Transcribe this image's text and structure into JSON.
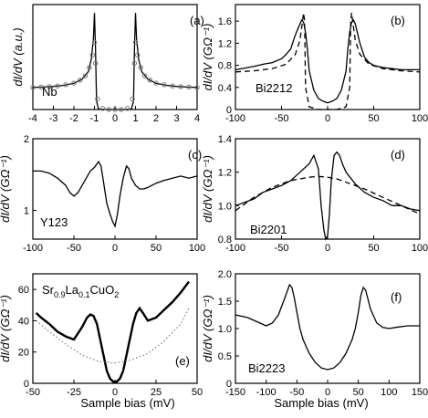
{
  "figure": {
    "xlabel": "Sample bias  (mV)"
  },
  "chart_data": [
    {
      "type": "line",
      "panel_label": "(a)",
      "sample": "Nb",
      "ylabel": "dI/dV  (a.u.)",
      "xlim": [
        -4,
        4
      ],
      "xticks": [
        "-4",
        "-3",
        "-2",
        "-1",
        "0",
        "1",
        "2",
        "3",
        "4"
      ],
      "yticks": [],
      "series": [
        {
          "style": "solid",
          "x": [
            -4,
            -3.5,
            -3,
            -2.5,
            -2,
            -1.6,
            -1.3,
            -1.15,
            -1.05,
            -1.0,
            -0.95,
            -0.9,
            -0.8,
            -0.5,
            0,
            0.5,
            0.8,
            0.9,
            0.95,
            1.0,
            1.05,
            1.15,
            1.3,
            1.6,
            2,
            2.5,
            3,
            3.5,
            4
          ],
          "y": [
            1.05,
            1.07,
            1.1,
            1.15,
            1.25,
            1.45,
            1.8,
            2.4,
            3.4,
            4.6,
            3.0,
            0.4,
            0.02,
            0.0,
            0.0,
            0.0,
            0.02,
            0.4,
            3.0,
            4.6,
            3.4,
            2.4,
            1.8,
            1.45,
            1.25,
            1.15,
            1.1,
            1.07,
            1.05
          ]
        },
        {
          "style": "markers",
          "x": [
            -4,
            -3.6,
            -3.2,
            -2.8,
            -2.4,
            -2.0,
            -1.7,
            -1.45,
            -1.25,
            -1.1,
            -1.0,
            -0.95,
            -0.85,
            -0.6,
            -0.3,
            0,
            0.3,
            0.6,
            0.85,
            0.95,
            1.0,
            1.1,
            1.25,
            1.45,
            1.7,
            2.0,
            2.4,
            2.8,
            3.2,
            3.6,
            4
          ],
          "y": [
            1.05,
            1.07,
            1.09,
            1.12,
            1.18,
            1.26,
            1.4,
            1.6,
            2.0,
            2.6,
            3.2,
            2.2,
            0.5,
            0.05,
            0.0,
            0.0,
            0.0,
            0.05,
            0.5,
            2.2,
            3.2,
            2.6,
            2.0,
            1.6,
            1.4,
            1.26,
            1.18,
            1.12,
            1.09,
            1.07,
            1.05
          ]
        }
      ],
      "ylim": [
        0,
        5
      ]
    },
    {
      "type": "line",
      "panel_label": "(b)",
      "sample": "Bi2212",
      "ylabel": "dI/dV  (GΩ⁻¹)",
      "xlim": [
        -100,
        100
      ],
      "ylim": [
        0,
        1.9
      ],
      "xticks": [
        "-100",
        "-50",
        "0",
        "50",
        "100"
      ],
      "yticks": [
        "0",
        "0.4",
        "0.8",
        "1.2",
        "1.6"
      ],
      "series": [
        {
          "style": "solid",
          "x": [
            -100,
            -90,
            -80,
            -70,
            -60,
            -50,
            -45,
            -40,
            -35,
            -30,
            -28,
            -26,
            -24,
            -22,
            -20,
            -15,
            -10,
            -5,
            0,
            5,
            10,
            15,
            20,
            22,
            24,
            26,
            28,
            30,
            35,
            40,
            45,
            50,
            60,
            70,
            80,
            90,
            100
          ],
          "y": [
            0.72,
            0.75,
            0.78,
            0.82,
            0.85,
            0.92,
            1.0,
            1.1,
            1.35,
            1.55,
            1.62,
            1.58,
            1.4,
            1.1,
            0.7,
            0.35,
            0.2,
            0.15,
            0.12,
            0.15,
            0.2,
            0.35,
            0.7,
            1.1,
            1.4,
            1.58,
            1.62,
            1.55,
            1.2,
            0.95,
            0.85,
            0.8,
            0.76,
            0.74,
            0.72,
            0.72,
            0.72
          ]
        },
        {
          "style": "dashed",
          "x": [
            -100,
            -80,
            -60,
            -45,
            -35,
            -30,
            -28,
            -26,
            -25,
            -24,
            -20,
            -10,
            0,
            10,
            20,
            24,
            25,
            26,
            28,
            30,
            35,
            45,
            60,
            80,
            100
          ],
          "y": [
            0.68,
            0.7,
            0.74,
            0.82,
            1.0,
            1.25,
            1.5,
            1.75,
            1.6,
            0.4,
            0.05,
            0.0,
            0.0,
            0.0,
            0.05,
            0.4,
            1.6,
            1.75,
            1.5,
            1.25,
            1.0,
            0.82,
            0.74,
            0.7,
            0.68
          ]
        }
      ]
    },
    {
      "type": "line",
      "panel_label": "(c)",
      "sample": "Y123",
      "ylabel": "dI/dV  (GΩ⁻¹)",
      "xlim": [
        -100,
        100
      ],
      "ylim": [
        0.6,
        2
      ],
      "xticks": [
        "-100",
        "-50",
        "0",
        "50",
        "100"
      ],
      "yticks": [
        "1",
        "2"
      ],
      "series": [
        {
          "style": "solid",
          "x": [
            -100,
            -90,
            -80,
            -70,
            -60,
            -55,
            -50,
            -45,
            -40,
            -35,
            -30,
            -25,
            -20,
            -17,
            -14,
            -10,
            -6,
            -3,
            0,
            3,
            6,
            10,
            14,
            17,
            20,
            25,
            30,
            35,
            40,
            45,
            50,
            60,
            70,
            80,
            90,
            100
          ],
          "y": [
            1.55,
            1.55,
            1.52,
            1.45,
            1.35,
            1.25,
            1.2,
            1.25,
            1.35,
            1.45,
            1.55,
            1.6,
            1.68,
            1.62,
            1.4,
            1.1,
            0.95,
            0.85,
            0.78,
            0.95,
            1.2,
            1.45,
            1.62,
            1.58,
            1.45,
            1.35,
            1.3,
            1.3,
            1.32,
            1.35,
            1.38,
            1.42,
            1.45,
            1.48,
            1.45,
            1.48
          ]
        }
      ]
    },
    {
      "type": "line",
      "panel_label": "(d)",
      "sample": "Bi2201",
      "ylabel": "dI/dV  (GΩ⁻¹)",
      "xlim": [
        -100,
        100
      ],
      "ylim": [
        0.8,
        1.4
      ],
      "xticks": [
        "-100",
        "-50",
        "0",
        "50",
        "100"
      ],
      "yticks": [
        "0.8",
        "1.0",
        "1.2",
        "1.4"
      ],
      "series": [
        {
          "style": "solid",
          "x": [
            -100,
            -90,
            -80,
            -70,
            -60,
            -50,
            -40,
            -30,
            -20,
            -15,
            -10,
            -7,
            -4,
            -2,
            0,
            2,
            4,
            7,
            10,
            13,
            16,
            20,
            30,
            40,
            50,
            60,
            70,
            80,
            90,
            100
          ],
          "y": [
            1.0,
            1.02,
            1.04,
            1.08,
            1.1,
            1.12,
            1.15,
            1.2,
            1.25,
            1.3,
            1.22,
            1.0,
            0.85,
            0.8,
            0.82,
            0.95,
            1.15,
            1.3,
            1.32,
            1.3,
            1.25,
            1.2,
            1.13,
            1.08,
            1.05,
            1.03,
            1.0,
            1.0,
            0.98,
            0.97
          ]
        },
        {
          "style": "dashed",
          "x": [
            -100,
            -80,
            -60,
            -40,
            -20,
            -10,
            0,
            10,
            20,
            40,
            60,
            80,
            100
          ],
          "y": [
            0.97,
            1.05,
            1.11,
            1.15,
            1.17,
            1.175,
            1.17,
            1.16,
            1.14,
            1.1,
            1.05,
            1.0,
            0.95
          ]
        }
      ]
    },
    {
      "type": "line",
      "panel_label": "(e)",
      "sample": "Sr0.9La0.1CuO2",
      "sample_main": "Sr",
      "sample_sub1": "0.9",
      "sample_mid": "La",
      "sample_sub2": "0.1",
      "sample_end": "CuO",
      "sample_sub3": "2",
      "ylabel": "dI/dV  (GΩ⁻¹)",
      "xlim": [
        -50,
        50
      ],
      "ylim": [
        0,
        70
      ],
      "xticks": [
        "-50",
        "-25",
        "0",
        "25",
        "50"
      ],
      "yticks": [
        "0",
        "20",
        "40",
        "60"
      ],
      "series": [
        {
          "style": "solid",
          "x": [
            -48,
            -45,
            -40,
            -35,
            -30,
            -25,
            -20,
            -17,
            -15,
            -13,
            -11,
            -9,
            -7,
            -5,
            -3,
            -1,
            0,
            1,
            3,
            5,
            7,
            9,
            11,
            13,
            15,
            17,
            20,
            25,
            30,
            35,
            40,
            45
          ],
          "y": [
            45,
            42,
            38,
            33,
            30,
            28,
            36,
            42,
            44,
            43,
            38,
            28,
            18,
            8,
            3,
            1,
            1,
            1,
            3,
            8,
            18,
            28,
            38,
            45,
            48,
            45,
            40,
            42,
            47,
            52,
            58,
            65
          ]
        },
        {
          "style": "dotted",
          "x": [
            -48,
            -40,
            -30,
            -20,
            -10,
            0,
            10,
            20,
            30,
            40,
            45
          ],
          "y": [
            40,
            33,
            25,
            18,
            14,
            13,
            15,
            19,
            27,
            38,
            48
          ]
        }
      ]
    },
    {
      "type": "line",
      "panel_label": "(f)",
      "sample": "Bi2223",
      "ylabel": "dI/dV  (GΩ⁻¹)",
      "xlim": [
        -150,
        150
      ],
      "ylim": [
        0,
        2
      ],
      "xticks": [
        "-150",
        "-100",
        "-50",
        "0",
        "50",
        "100",
        "150"
      ],
      "yticks": [
        "0",
        "0.5",
        "1.0",
        "1.5",
        "2.0"
      ],
      "series": [
        {
          "style": "solid",
          "x": [
            -150,
            -130,
            -110,
            -100,
            -90,
            -80,
            -70,
            -62,
            -58,
            -54,
            -50,
            -45,
            -40,
            -30,
            -20,
            -10,
            0,
            10,
            20,
            30,
            40,
            45,
            50,
            54,
            58,
            62,
            70,
            80,
            90,
            100,
            110,
            130,
            150
          ],
          "y": [
            1.25,
            1.2,
            1.1,
            1.05,
            1.1,
            1.25,
            1.55,
            1.8,
            1.75,
            1.55,
            1.3,
            1.0,
            0.8,
            0.55,
            0.38,
            0.28,
            0.25,
            0.28,
            0.38,
            0.55,
            0.8,
            1.0,
            1.3,
            1.6,
            1.75,
            1.7,
            1.35,
            1.1,
            1.02,
            1.0,
            1.02,
            1.05,
            1.05
          ]
        }
      ]
    }
  ]
}
